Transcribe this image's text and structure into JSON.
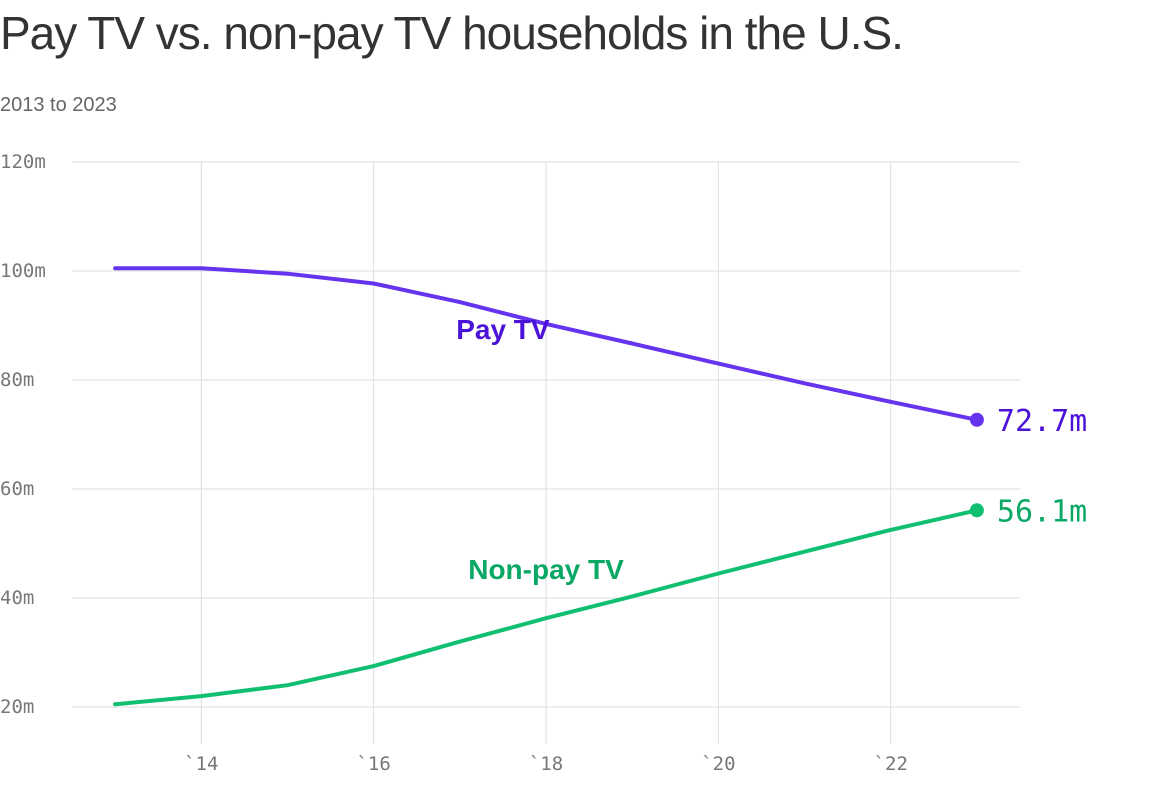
{
  "title": "Pay TV vs. non-pay TV households in the U.S.",
  "subtitle": "2013 to 2023",
  "chart_data": {
    "type": "line",
    "x": [
      2013,
      2014,
      2015,
      2016,
      2017,
      2018,
      2019,
      2020,
      2021,
      2022,
      2023
    ],
    "xlim": [
      2012.5,
      2023.5
    ],
    "ylim": [
      20,
      120
    ],
    "y_ticks": [
      20,
      40,
      60,
      80,
      100,
      120
    ],
    "y_tick_labels": [
      "20m",
      "40m",
      "60m",
      "80m",
      "100m",
      "120m"
    ],
    "x_ticks": [
      2014,
      2016,
      2018,
      2020,
      2022
    ],
    "x_tick_labels": [
      "`14",
      "`16",
      "`18",
      "`20",
      "`22"
    ],
    "grid": true,
    "series": [
      {
        "name": "Pay TV",
        "color": "#6633ee",
        "label_color": "#4b12d8",
        "values": [
          100.5,
          100.5,
          99.5,
          97.7,
          94.3,
          90.3,
          86.7,
          83.0,
          79.4,
          76.0,
          72.7
        ],
        "end_label": "72.7m",
        "label_x": 2017.5,
        "label_y": 87.5
      },
      {
        "name": "Non-pay TV",
        "color": "#10c070",
        "label_color": "#0aa865",
        "values": [
          20.5,
          22.0,
          24.0,
          27.5,
          32.0,
          36.3,
          40.3,
          44.5,
          48.5,
          52.5,
          56.1
        ],
        "end_label": "56.1m",
        "label_x": 2018.0,
        "label_y": 43.5
      }
    ]
  }
}
